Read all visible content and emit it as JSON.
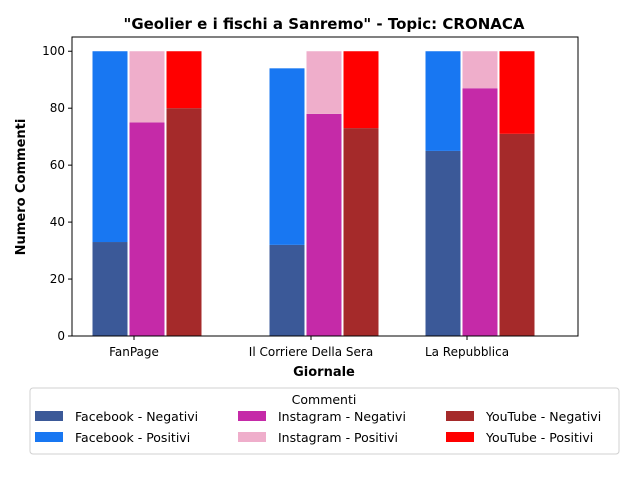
{
  "chart_data": {
    "type": "bar",
    "title": "\"Geolier e i fischi a Sanremo\" - Topic: CRONACA",
    "xlabel": "Giornale",
    "ylabel": "Numero Commenti",
    "categories": [
      "FanPage",
      "Il Corriere Della Sera",
      "La Repubblica"
    ],
    "ylim": [
      0,
      105
    ],
    "yticks": [
      0,
      20,
      40,
      60,
      80,
      100
    ],
    "stacked_groups": [
      {
        "platform": "Facebook",
        "negative": {
          "name": "Facebook - Negativi",
          "color": "#3b5998",
          "values": [
            33,
            32,
            65
          ]
        },
        "positive": {
          "name": "Facebook - Positivi",
          "color": "#1877f2",
          "values": [
            67,
            62,
            35
          ]
        }
      },
      {
        "platform": "Instagram",
        "negative": {
          "name": "Instagram - Negativi",
          "color": "#c52aa8",
          "values": [
            75,
            78,
            87
          ]
        },
        "positive": {
          "name": "Instagram - Positivi",
          "color": "#efaecb",
          "values": [
            25,
            22,
            13
          ]
        }
      },
      {
        "platform": "YouTube",
        "negative": {
          "name": "YouTube - Negativi",
          "color": "#a52a2a",
          "values": [
            80,
            73,
            71
          ]
        },
        "positive": {
          "name": "YouTube - Positivi",
          "color": "#ff0000",
          "values": [
            20,
            27,
            29
          ]
        }
      }
    ],
    "legend": {
      "title": "Commenti",
      "placement": "bottom-center",
      "entries": [
        "Facebook - Negativi",
        "Instagram - Negativi",
        "YouTube - Negativi",
        "Facebook - Positivi",
        "Instagram - Positivi",
        "YouTube - Positivi"
      ]
    },
    "grid": false
  }
}
